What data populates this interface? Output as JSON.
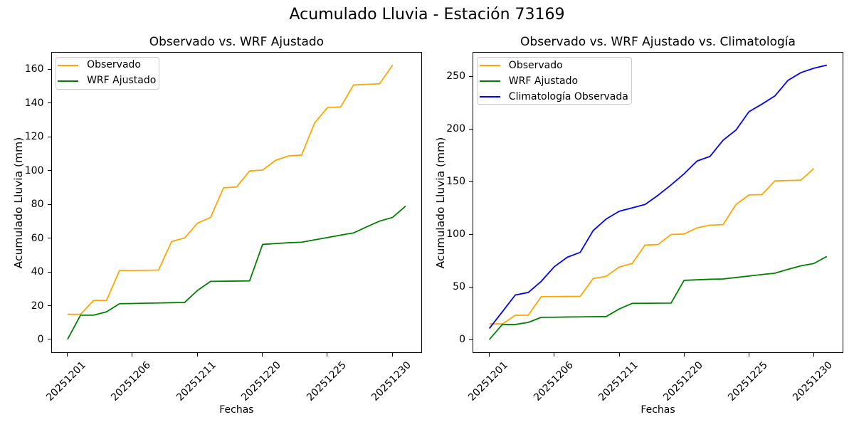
{
  "figure": {
    "suptitle": "Acumulado Lluvia - Estación 73169",
    "background_color": "#ffffff",
    "text_color": "#000000",
    "axis_color": "#000000"
  },
  "chart_data": [
    {
      "type": "line",
      "title": "Observado vs. WRF Ajustado",
      "xlabel": "Fechas",
      "ylabel": "Acumulado Lluvia (mm)",
      "x_unit": "day index along categorical date axis",
      "x_tick_positions": [
        0,
        5,
        10,
        15,
        20,
        25
      ],
      "x_tick_labels": [
        "20251201",
        "20251206",
        "20251211",
        "20251220",
        "20251225",
        "20251230"
      ],
      "y_ticks": [
        0,
        20,
        40,
        60,
        80,
        100,
        120,
        140,
        160
      ],
      "xlim": [
        -1.3,
        27.3
      ],
      "ylim": [
        -8.1,
        170.2
      ],
      "grid": false,
      "legend_position": "upper left",
      "series": [
        {
          "name": "Observado",
          "color": "#FFA500",
          "values": [
            14.8,
            14.8,
            23.0,
            23.1,
            40.8,
            40.8,
            40.9,
            41.0,
            57.9,
            60.0,
            68.8,
            72.2,
            89.7,
            90.2,
            99.7,
            100.2,
            106.0,
            108.6,
            109.1,
            128.1,
            137.3,
            137.6,
            150.6,
            151.0,
            151.3,
            162.4
          ]
        },
        {
          "name": "WRF Ajustado",
          "color": "#008000",
          "values": [
            0.0,
            14.3,
            14.3,
            16.3,
            21.1,
            21.2,
            21.4,
            21.5,
            21.7,
            21.8,
            29.0,
            34.3,
            34.4,
            34.5,
            34.6,
            56.2,
            56.7,
            57.2,
            57.5,
            58.9,
            60.3,
            61.7,
            63.0,
            66.6,
            70.0,
            72.2,
            78.9
          ]
        }
      ]
    },
    {
      "type": "line",
      "title": "Observado vs. WRF Ajustado vs. Climatología",
      "xlabel": "Fechas",
      "ylabel": "Acumulado Lluvia (mm)",
      "x_unit": "day index along categorical date axis",
      "x_tick_positions": [
        0,
        5,
        10,
        15,
        20,
        25
      ],
      "x_tick_labels": [
        "20251201",
        "20251206",
        "20251211",
        "20251220",
        "20251225",
        "20251230"
      ],
      "y_ticks": [
        0,
        50,
        100,
        150,
        200,
        250
      ],
      "xlim": [
        -1.3,
        27.3
      ],
      "ylim": [
        -13.0,
        273.0
      ],
      "grid": false,
      "legend_position": "upper left",
      "series": [
        {
          "name": "Observado",
          "color": "#FFA500",
          "values": [
            14.8,
            14.8,
            23.0,
            23.1,
            40.8,
            40.8,
            40.9,
            41.0,
            57.9,
            60.0,
            68.8,
            72.2,
            89.7,
            90.2,
            99.7,
            100.2,
            106.0,
            108.6,
            109.1,
            128.1,
            137.3,
            137.6,
            150.6,
            151.0,
            151.3,
            162.4
          ]
        },
        {
          "name": "WRF Ajustado",
          "color": "#008000",
          "values": [
            0.0,
            14.3,
            14.3,
            16.3,
            21.1,
            21.2,
            21.4,
            21.5,
            21.7,
            21.8,
            29.0,
            34.3,
            34.4,
            34.5,
            34.6,
            56.2,
            56.7,
            57.2,
            57.5,
            58.9,
            60.3,
            61.7,
            63.0,
            66.6,
            70.0,
            72.2,
            78.9
          ]
        },
        {
          "name": "Climatología Observada",
          "color": "#0000FF",
          "values": [
            10.5,
            26.4,
            42.3,
            44.7,
            55.3,
            69.1,
            78.1,
            82.8,
            103.5,
            114.4,
            121.8,
            125.0,
            128.3,
            137.0,
            146.8,
            157.3,
            169.5,
            173.9,
            189.1,
            198.9,
            216.3,
            223.5,
            231.3,
            246.0,
            253.4,
            257.6,
            260.5
          ]
        }
      ]
    }
  ]
}
